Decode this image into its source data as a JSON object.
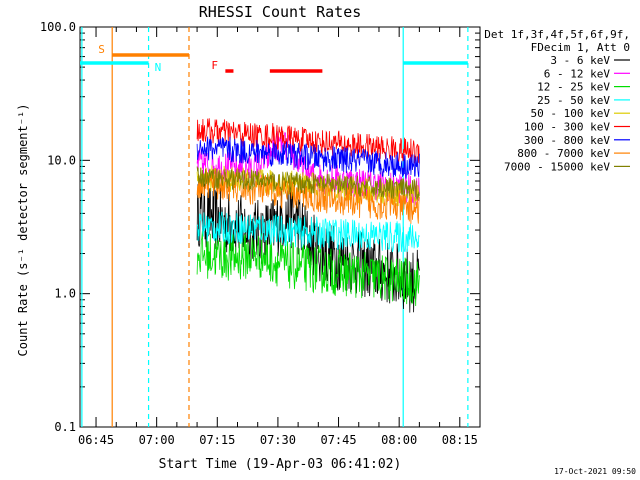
{
  "chart_data": {
    "type": "line",
    "title": "RHESSI Count Rates",
    "xlabel": "Start Time (19-Apr-03 06:41:02)",
    "ylabel": "Count Rate (s⁻¹ detector segment⁻¹)",
    "yscale": "log",
    "ylim": [
      0.1,
      100
    ],
    "xlim_minutes": [
      "06:41:02",
      "08:20:00"
    ],
    "y_ticks": [
      "0.1",
      "1.0",
      "10.0",
      "100.0"
    ],
    "x_ticks": [
      "06:45",
      "07:00",
      "07:15",
      "07:30",
      "07:45",
      "08:00",
      "08:15"
    ],
    "legend": {
      "position": "right",
      "header": [
        "Det 1f,3f,4f,5f,6f,9f,",
        "FDecim 1, Att 0"
      ],
      "entries": [
        {
          "label": "3 - 6 keV",
          "color": "#000000"
        },
        {
          "label": "6 - 12 keV",
          "color": "#ff00ff"
        },
        {
          "label": "12 - 25 keV",
          "color": "#00dd00"
        },
        {
          "label": "25 - 50 keV",
          "color": "#00ffff"
        },
        {
          "label": "50 - 100 keV",
          "color": "#ddcc00"
        },
        {
          "label": "100 - 300 keV",
          "color": "#ff0000"
        },
        {
          "label": "300 - 800 keV",
          "color": "#0000ff"
        },
        {
          "label": "800 - 7000 keV",
          "color": "#ff8000"
        },
        {
          "label": "7000 - 15000 keV",
          "color": "#808000"
        }
      ]
    },
    "data_window": [
      "07:10",
      "08:05"
    ],
    "series": [
      {
        "name": "3 - 6 keV",
        "color": "#000000",
        "start": 4.0,
        "end": 1.2,
        "noise": 0.25,
        "bump_at": "07:33",
        "bump_amp": 8
      },
      {
        "name": "6 - 12 keV",
        "color": "#ff00ff",
        "start": 9.5,
        "end": 6.0,
        "noise": 0.12,
        "bump_at": "07:31",
        "bump_amp": 24
      },
      {
        "name": "12 - 25 keV",
        "color": "#00dd00",
        "start": 2.0,
        "end": 1.2,
        "noise": 0.18,
        "bump_at": "07:25",
        "bump_amp": 2.6
      },
      {
        "name": "25 - 50 keV",
        "color": "#00ffff",
        "start": 3.2,
        "end": 2.6,
        "noise": 0.12,
        "bump_at": "07:25",
        "bump_amp": 3.5
      },
      {
        "name": "50 - 100 keV",
        "color": "#ddcc00",
        "start": 7.5,
        "end": 5.5,
        "noise": 0.1,
        "bump_at": "07:35",
        "bump_amp": 8
      },
      {
        "name": "100 - 300 keV",
        "color": "#ff0000",
        "start": 17.0,
        "end": 11.5,
        "noise": 0.1,
        "bump_at": "07:30",
        "bump_amp": 18
      },
      {
        "name": "300 - 800 keV",
        "color": "#0000ff",
        "start": 12.5,
        "end": 9.0,
        "noise": 0.1,
        "bump_at": "07:30",
        "bump_amp": 13
      },
      {
        "name": "800 - 7000 keV",
        "color": "#ff8000",
        "start": 6.8,
        "end": 4.3,
        "noise": 0.12,
        "bump_at": "07:30",
        "bump_amp": 7
      },
      {
        "name": "7000 - 15000 keV",
        "color": "#808000",
        "start": 7.5,
        "end": 6.0,
        "noise": 0.08,
        "bump_at": "07:35",
        "bump_amp": 7.5
      }
    ],
    "vertical_markers": [
      {
        "time": "06:41:30",
        "color": "#00ffff",
        "style": "solid"
      },
      {
        "time": "06:49:00",
        "color": "#ff8000",
        "style": "solid"
      },
      {
        "time": "06:58:00",
        "color": "#00ffff",
        "style": "dashed"
      },
      {
        "time": "07:08:00",
        "color": "#ff8000",
        "style": "dashed"
      },
      {
        "time": "08:01:00",
        "color": "#00ffff",
        "style": "solid"
      },
      {
        "time": "08:17:00",
        "color": "#00ffff",
        "style": "dashed"
      }
    ],
    "flag_bars": [
      {
        "label": "S",
        "color": "#ff8000",
        "y": 75,
        "from": "06:49:00",
        "to": "07:08:00"
      },
      {
        "label": "N",
        "color": "#00ffff",
        "y": 65,
        "from": "06:41:02",
        "to": "06:58:00"
      },
      {
        "label": "",
        "color": "#00ffff",
        "y": 65,
        "from": "08:01:00",
        "to": "08:17:00"
      },
      {
        "label": "F",
        "color": "#ff0000",
        "y": 55,
        "from": "07:17:00",
        "to": "07:19:00"
      },
      {
        "label": "",
        "color": "#ff0000",
        "y": 55,
        "from": "07:28:00",
        "to": "07:41:00"
      }
    ],
    "timestamp": "17-Oct-2021 09:50"
  }
}
